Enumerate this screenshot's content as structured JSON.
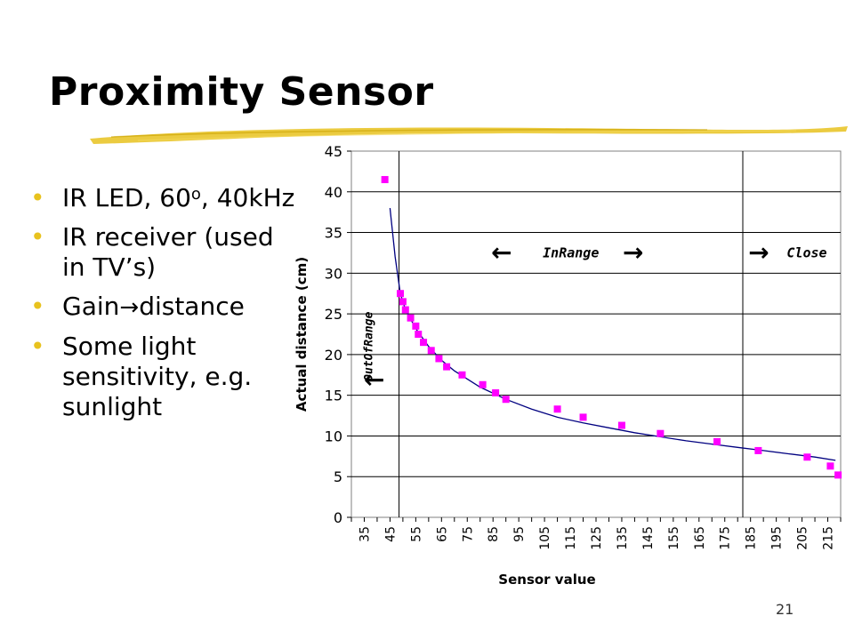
{
  "slide": {
    "title": "Proximity Sensor",
    "page_number": "21",
    "accent_color": "#e8c21e"
  },
  "bullets": [
    {
      "text": "IR LED, 60",
      "sup": "o",
      "text_after": ", 40kHz"
    },
    {
      "text": "IR receiver (used in TV’s)"
    },
    {
      "text": "Gain",
      "arrow": "→",
      "text_after": "distance"
    },
    {
      "text": "Some light sensitivity, e.g. sunlight"
    }
  ],
  "chart_data": {
    "type": "scatter",
    "title": "",
    "xlabel": "Sensor value",
    "ylabel": "Actual distance (cm)",
    "xlim": [
      30,
      220
    ],
    "ylim": [
      0,
      45
    ],
    "x_ticks": [
      35,
      45,
      55,
      65,
      75,
      85,
      95,
      105,
      115,
      125,
      135,
      145,
      155,
      165,
      175,
      185,
      195,
      205,
      215
    ],
    "y_ticks": [
      0,
      5,
      10,
      15,
      20,
      25,
      30,
      35,
      40,
      45
    ],
    "grid": "horizontal",
    "marker_color": "#ff00ff",
    "curve_color": "#000080",
    "points": [
      [
        43,
        41.5
      ],
      [
        49,
        27.5
      ],
      [
        50,
        26.5
      ],
      [
        51,
        25.5
      ],
      [
        53,
        24.5
      ],
      [
        55,
        23.5
      ],
      [
        56,
        22.5
      ],
      [
        58,
        21.5
      ],
      [
        61,
        20.5
      ],
      [
        64,
        19.5
      ],
      [
        67,
        18.5
      ],
      [
        73,
        17.5
      ],
      [
        81,
        16.3
      ],
      [
        86,
        15.3
      ],
      [
        90,
        14.5
      ],
      [
        110,
        13.3
      ],
      [
        120,
        12.3
      ],
      [
        135,
        11.3
      ],
      [
        150,
        10.3
      ],
      [
        172,
        9.3
      ],
      [
        188,
        8.2
      ],
      [
        207,
        7.4
      ],
      [
        216,
        6.3
      ],
      [
        219,
        5.2
      ]
    ],
    "fit_curve": [
      [
        45,
        38
      ],
      [
        47,
        32
      ],
      [
        49,
        27.5
      ],
      [
        51,
        25.5
      ],
      [
        55,
        23.2
      ],
      [
        60,
        21.0
      ],
      [
        65,
        19.3
      ],
      [
        70,
        18.0
      ],
      [
        80,
        16.0
      ],
      [
        90,
        14.5
      ],
      [
        100,
        13.3
      ],
      [
        110,
        12.3
      ],
      [
        120,
        11.6
      ],
      [
        130,
        11.0
      ],
      [
        140,
        10.4
      ],
      [
        150,
        9.9
      ],
      [
        160,
        9.4
      ],
      [
        170,
        9.0
      ],
      [
        180,
        8.6
      ],
      [
        190,
        8.2
      ],
      [
        200,
        7.8
      ],
      [
        210,
        7.4
      ],
      [
        218,
        7.0
      ]
    ],
    "regions": [
      {
        "label": "OutOfRange",
        "arrows": "←"
      },
      {
        "label": "InRange",
        "arrows": "← →"
      },
      {
        "label": "Close",
        "arrows": "→"
      }
    ],
    "region_bounds": [
      48.5,
      182
    ]
  }
}
